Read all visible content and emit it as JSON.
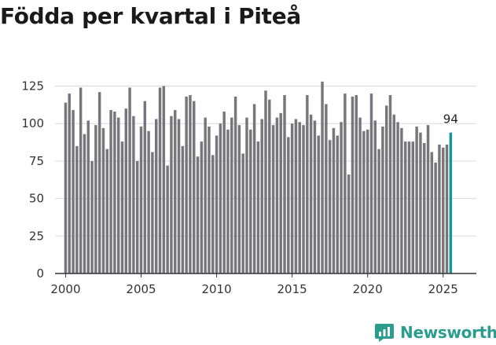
{
  "title": "Födda per kvartal i Piteå",
  "brand": {
    "name": "Newsworthy",
    "icon": "newsworthy-logo-icon",
    "color": "#2a9d8f"
  },
  "colors": {
    "bar": "#77767b",
    "highlight": "#11999e",
    "grid": "#d9d9d9",
    "axis": "#333333"
  },
  "chart_data": {
    "type": "bar",
    "title": "Födda per kvartal i Piteå",
    "xlabel": "",
    "ylabel": "",
    "ylim": [
      0,
      130
    ],
    "yticks": [
      0,
      25,
      50,
      75,
      100,
      125
    ],
    "xlim": [
      1999.3,
      2027.2
    ],
    "xticks": [
      2000,
      2005,
      2010,
      2015,
      2020,
      2025
    ],
    "grid": true,
    "start_quarter": "2000-Q1",
    "values": [
      114,
      120,
      109,
      85,
      124,
      93,
      102,
      75,
      99,
      121,
      97,
      83,
      109,
      108,
      104,
      88,
      110,
      124,
      105,
      75,
      98,
      115,
      95,
      81,
      103,
      124,
      125,
      72,
      105,
      109,
      103,
      85,
      118,
      119,
      115,
      78,
      88,
      104,
      98,
      79,
      92,
      100,
      108,
      96,
      104,
      118,
      99,
      80,
      104,
      96,
      113,
      88,
      103,
      122,
      116,
      99,
      104,
      107,
      119,
      91,
      100,
      103,
      101,
      99,
      119,
      106,
      102,
      92,
      128,
      113,
      89,
      97,
      92,
      101,
      120,
      66,
      118,
      119,
      104,
      95,
      96,
      120,
      102,
      83,
      98,
      112,
      119,
      106,
      101,
      97,
      88,
      88,
      88,
      98,
      94,
      87,
      99,
      81,
      74,
      86,
      84,
      86,
      94
    ],
    "highlight_last": true,
    "annotation": {
      "text": "94",
      "target": "last"
    }
  }
}
